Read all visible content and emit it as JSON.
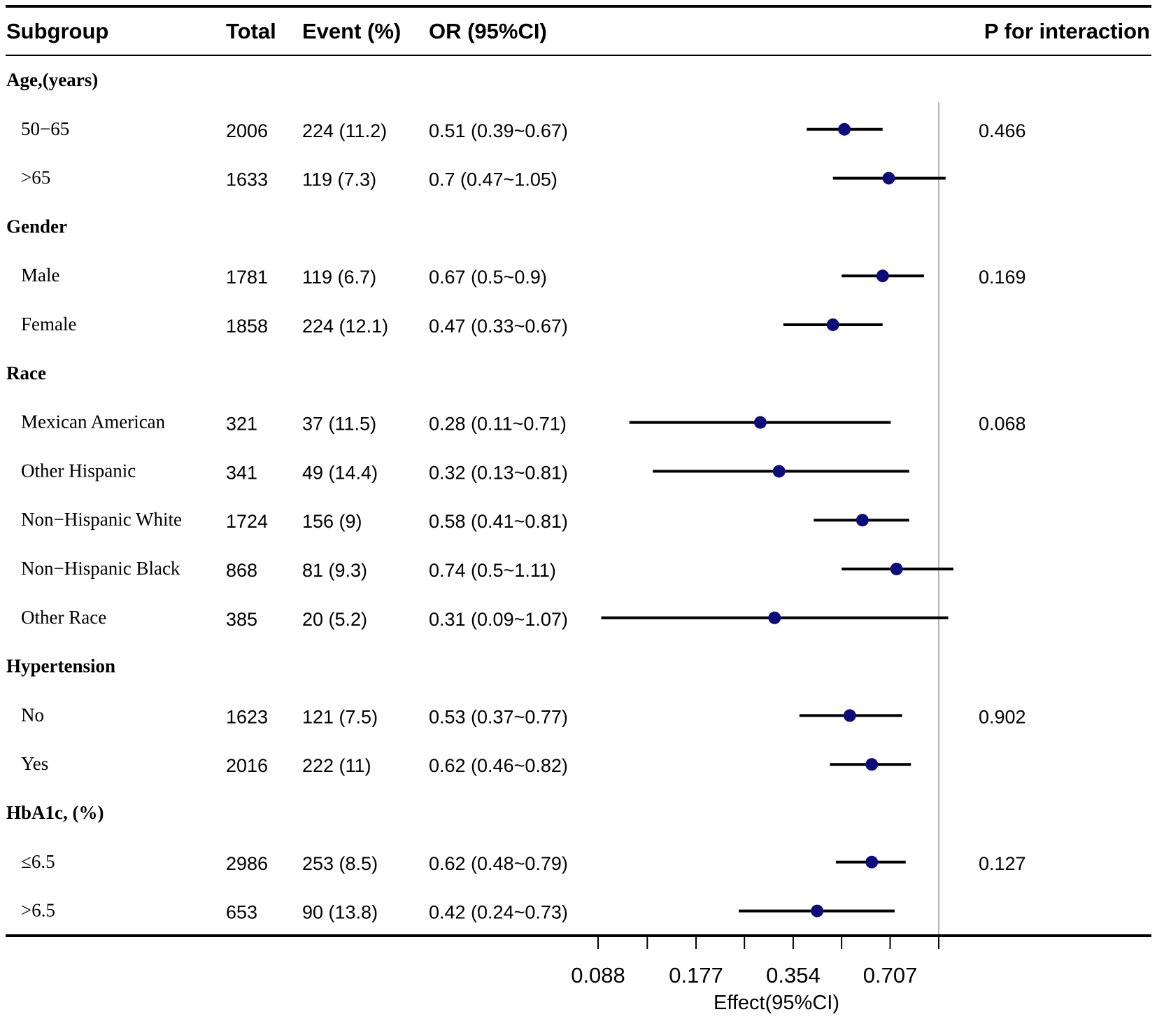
{
  "chart_data": {
    "type": "forest",
    "headers": {
      "subgroup": "Subgroup",
      "total": "Total",
      "event": "Event (%)",
      "or": "OR (95%CI)",
      "p": "P for interaction"
    },
    "rows": [
      {
        "kind": "group",
        "label": "Age,(years)"
      },
      {
        "kind": "item",
        "label": "50−65",
        "total": "2006",
        "event": "224 (11.2)",
        "or_text": "0.51 (0.39~0.67)",
        "or": 0.51,
        "lo": 0.39,
        "hi": 0.67,
        "p": "0.466"
      },
      {
        "kind": "item",
        "label": ">65",
        "total": "1633",
        "event": "119 (7.3)",
        "or_text": "0.7 (0.47~1.05)",
        "or": 0.7,
        "lo": 0.47,
        "hi": 1.05,
        "p": ""
      },
      {
        "kind": "group",
        "label": "Gender"
      },
      {
        "kind": "item",
        "label": "Male",
        "total": "1781",
        "event": "119 (6.7)",
        "or_text": "0.67 (0.5~0.9)",
        "or": 0.67,
        "lo": 0.5,
        "hi": 0.9,
        "p": "0.169"
      },
      {
        "kind": "item",
        "label": "Female",
        "total": "1858",
        "event": "224 (12.1)",
        "or_text": "0.47 (0.33~0.67)",
        "or": 0.47,
        "lo": 0.33,
        "hi": 0.67,
        "p": ""
      },
      {
        "kind": "group",
        "label": "Race"
      },
      {
        "kind": "item",
        "label": "Mexican American",
        "total": "321",
        "event": "37 (11.5)",
        "or_text": "0.28 (0.11~0.71)",
        "or": 0.28,
        "lo": 0.11,
        "hi": 0.71,
        "p": "0.068"
      },
      {
        "kind": "item",
        "label": "Other Hispanic",
        "total": "341",
        "event": "49 (14.4)",
        "or_text": "0.32 (0.13~0.81)",
        "or": 0.32,
        "lo": 0.13,
        "hi": 0.81,
        "p": ""
      },
      {
        "kind": "item",
        "label": "Non−Hispanic White",
        "total": "1724",
        "event": "156 (9)",
        "or_text": "0.58 (0.41~0.81)",
        "or": 0.58,
        "lo": 0.41,
        "hi": 0.81,
        "p": ""
      },
      {
        "kind": "item",
        "label": "Non−Hispanic Black",
        "total": "868",
        "event": "81 (9.3)",
        "or_text": "0.74 (0.5~1.11)",
        "or": 0.74,
        "lo": 0.5,
        "hi": 1.11,
        "p": ""
      },
      {
        "kind": "item",
        "label": "Other Race",
        "total": "385",
        "event": "20 (5.2)",
        "or_text": "0.31 (0.09~1.07)",
        "or": 0.31,
        "lo": 0.09,
        "hi": 1.07,
        "p": ""
      },
      {
        "kind": "group",
        "label": "Hypertension"
      },
      {
        "kind": "item",
        "label": "No",
        "total": "1623",
        "event": "121 (7.5)",
        "or_text": "0.53 (0.37~0.77)",
        "or": 0.53,
        "lo": 0.37,
        "hi": 0.77,
        "p": "0.902"
      },
      {
        "kind": "item",
        "label": "Yes",
        "total": "2016",
        "event": "222 (11)",
        "or_text": "0.62 (0.46~0.82)",
        "or": 0.62,
        "lo": 0.46,
        "hi": 0.82,
        "p": ""
      },
      {
        "kind": "group",
        "label": "HbA1c, (%)"
      },
      {
        "kind": "item",
        "label": "≤6.5",
        "total": "2986",
        "event": "253 (8.5)",
        "or_text": "0.62 (0.48~0.79)",
        "or": 0.62,
        "lo": 0.48,
        "hi": 0.79,
        "p": "0.127"
      },
      {
        "kind": "item",
        "label": ">6.5",
        "total": "653",
        "event": "90 (13.8)",
        "or_text": "0.42 (0.24~0.73)",
        "or": 0.42,
        "lo": 0.24,
        "hi": 0.73,
        "p": ""
      }
    ],
    "xaxis": {
      "label": "Effect(95%CI)",
      "scale": "log2",
      "ticks": [
        0.088,
        0.125,
        0.177,
        0.25,
        0.354,
        0.5,
        0.707,
        1
      ],
      "tick_labels": [
        "0.088",
        "",
        "0.177",
        "",
        "0.354",
        "",
        "0.707",
        ""
      ],
      "reference": 1
    },
    "colors": {
      "point": "#0d0d7a",
      "line": "#000000",
      "reference": "#b5b5b5"
    }
  }
}
